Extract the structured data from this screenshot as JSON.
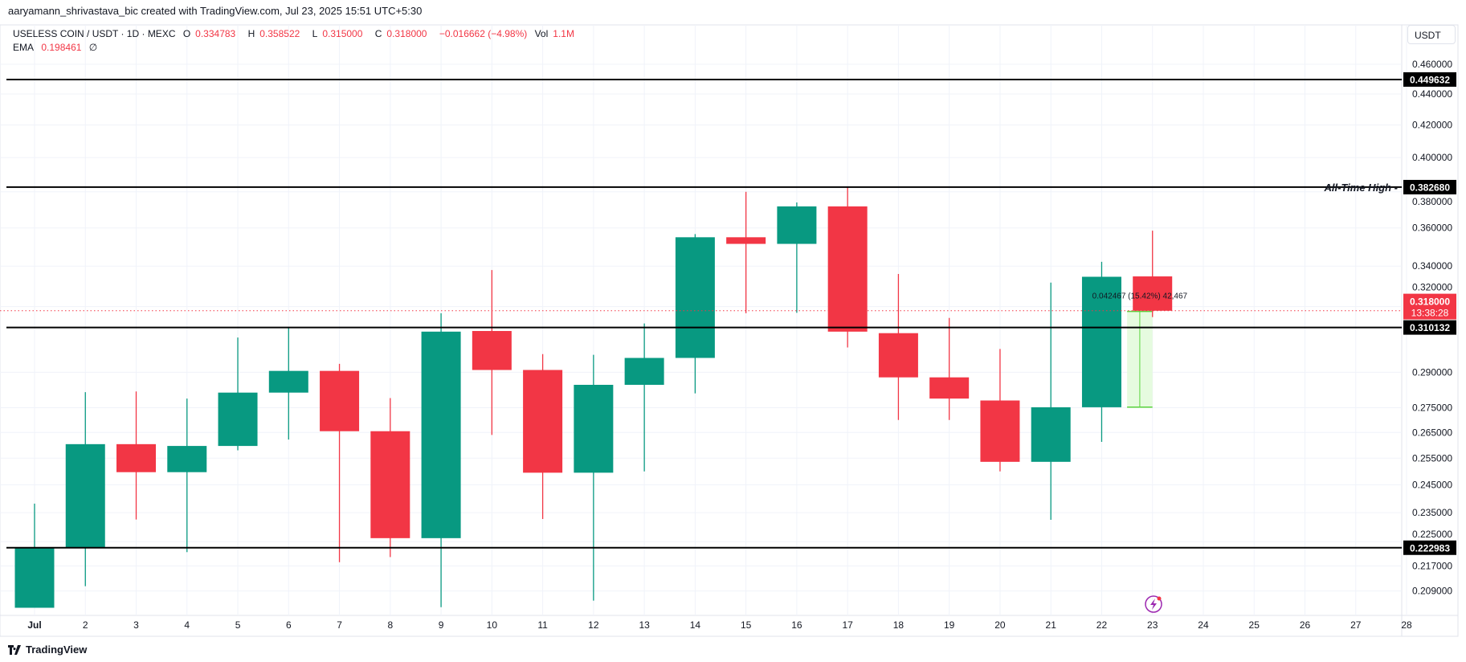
{
  "header": {
    "attribution": "aaryamann_shrivastava_bic created with TradingView.com, Jul 23, 2025 15:51 UTC+5:30"
  },
  "legend": {
    "symbol": "USELESS COIN / USDT · 1D · MEXC",
    "open_label": "O",
    "open": "0.334783",
    "high_label": "H",
    "high": "0.358522",
    "low_label": "L",
    "low": "0.315000",
    "close_label": "C",
    "close": "0.318000",
    "change": "−0.016662 (−4.98%)",
    "vol_label": "Vol",
    "vol": "1.1M",
    "ema_label": "EMA",
    "ema": "0.198461",
    "ema_symbol": "∅"
  },
  "currency_button": "USDT",
  "footer": {
    "brand": "TradingView",
    "logo_icon": "tradingview-logo-icon"
  },
  "colors": {
    "up": "#089981",
    "down": "#f23645",
    "line": "#000000",
    "measure_fill": "#e3fbdc",
    "measure_line": "#5ad43c",
    "alert_icon": "#9c27b0"
  },
  "chart_data": {
    "type": "candlestick",
    "y_scale": "log",
    "ylim": [
      0.205,
      0.47
    ],
    "grid": true,
    "x_ticks": [
      "Jul",
      "2",
      "3",
      "4",
      "5",
      "6",
      "7",
      "8",
      "9",
      "10",
      "11",
      "12",
      "13",
      "14",
      "15",
      "16",
      "17",
      "18",
      "19",
      "20",
      "21",
      "22",
      "23",
      "24",
      "25",
      "26",
      "27",
      "28"
    ],
    "y_ticks": [
      "0.460000",
      "0.440000",
      "0.420000",
      "0.400000",
      "0.380000",
      "0.360000",
      "0.340000",
      "0.320000",
      "0.290000",
      "0.275000",
      "0.265000",
      "0.255000",
      "0.245000",
      "0.235000",
      "0.225000",
      "0.217000",
      "0.209000"
    ],
    "candles": [
      {
        "day": "Jul 1",
        "o": 0.2038,
        "h": 0.2382,
        "l": 0.2038,
        "c": 0.2228
      },
      {
        "day": "Jul 2",
        "o": 0.2228,
        "h": 0.2815,
        "l": 0.2105,
        "c": 0.2604
      },
      {
        "day": "Jul 3",
        "o": 0.2604,
        "h": 0.2818,
        "l": 0.2326,
        "c": 0.2497
      },
      {
        "day": "Jul 4",
        "o": 0.2497,
        "h": 0.2788,
        "l": 0.2215,
        "c": 0.2597
      },
      {
        "day": "Jul 5",
        "o": 0.2597,
        "h": 0.3055,
        "l": 0.258,
        "c": 0.2813
      },
      {
        "day": "Jul 6",
        "o": 0.2813,
        "h": 0.3098,
        "l": 0.2622,
        "c": 0.2906
      },
      {
        "day": "Jul 7",
        "o": 0.2906,
        "h": 0.2937,
        "l": 0.2182,
        "c": 0.2655
      },
      {
        "day": "Jul 8",
        "o": 0.2655,
        "h": 0.279,
        "l": 0.2199,
        "c": 0.2262
      },
      {
        "day": "Jul 9",
        "o": 0.2262,
        "h": 0.3168,
        "l": 0.204,
        "c": 0.3082
      },
      {
        "day": "Jul 10",
        "o": 0.3085,
        "h": 0.338,
        "l": 0.264,
        "c": 0.291
      },
      {
        "day": "Jul 11",
        "o": 0.291,
        "h": 0.298,
        "l": 0.2328,
        "c": 0.2495
      },
      {
        "day": "Jul 12",
        "o": 0.2495,
        "h": 0.2977,
        "l": 0.206,
        "c": 0.2846
      },
      {
        "day": "Jul 13",
        "o": 0.2846,
        "h": 0.312,
        "l": 0.25,
        "c": 0.2963
      },
      {
        "day": "Jul 14",
        "o": 0.2963,
        "h": 0.3567,
        "l": 0.281,
        "c": 0.355
      },
      {
        "day": "Jul 15",
        "o": 0.355,
        "h": 0.38,
        "l": 0.3168,
        "c": 0.3515
      },
      {
        "day": "Jul 16",
        "o": 0.3515,
        "h": 0.374,
        "l": 0.317,
        "c": 0.3718
      },
      {
        "day": "Jul 17",
        "o": 0.3718,
        "h": 0.38268,
        "l": 0.301,
        "c": 0.3082
      },
      {
        "day": "Jul 18",
        "o": 0.3075,
        "h": 0.336,
        "l": 0.27,
        "c": 0.2878
      },
      {
        "day": "Jul 19",
        "o": 0.2878,
        "h": 0.3146,
        "l": 0.27,
        "c": 0.2788
      },
      {
        "day": "Jul 20",
        "o": 0.278,
        "h": 0.3003,
        "l": 0.25,
        "c": 0.2536
      },
      {
        "day": "Jul 21",
        "o": 0.2536,
        "h": 0.3317,
        "l": 0.2325,
        "c": 0.2752
      },
      {
        "day": "Jul 22",
        "o": 0.2752,
        "h": 0.3422,
        "l": 0.2613,
        "c": 0.3346
      },
      {
        "day": "Jul 23",
        "o": 0.334783,
        "h": 0.358522,
        "l": 0.315,
        "c": 0.318
      }
    ],
    "horizontal_lines": [
      {
        "price": 0.449632,
        "label": "0.449632",
        "text": ""
      },
      {
        "price": 0.38268,
        "label": "0.382680",
        "text": "All-Time High -"
      },
      {
        "price": 0.310132,
        "label": "0.310132",
        "text": ""
      },
      {
        "price": 0.222983,
        "label": "0.222983",
        "text": ""
      }
    ],
    "last_price": {
      "price": 0.318,
      "label": "0.318000",
      "countdown": "13:38:28"
    },
    "measure": {
      "from": 0.275233,
      "to": 0.3177,
      "from_day": 22.5,
      "to_day": 23,
      "text": "0.042467 (15.42%) 42,467"
    }
  }
}
